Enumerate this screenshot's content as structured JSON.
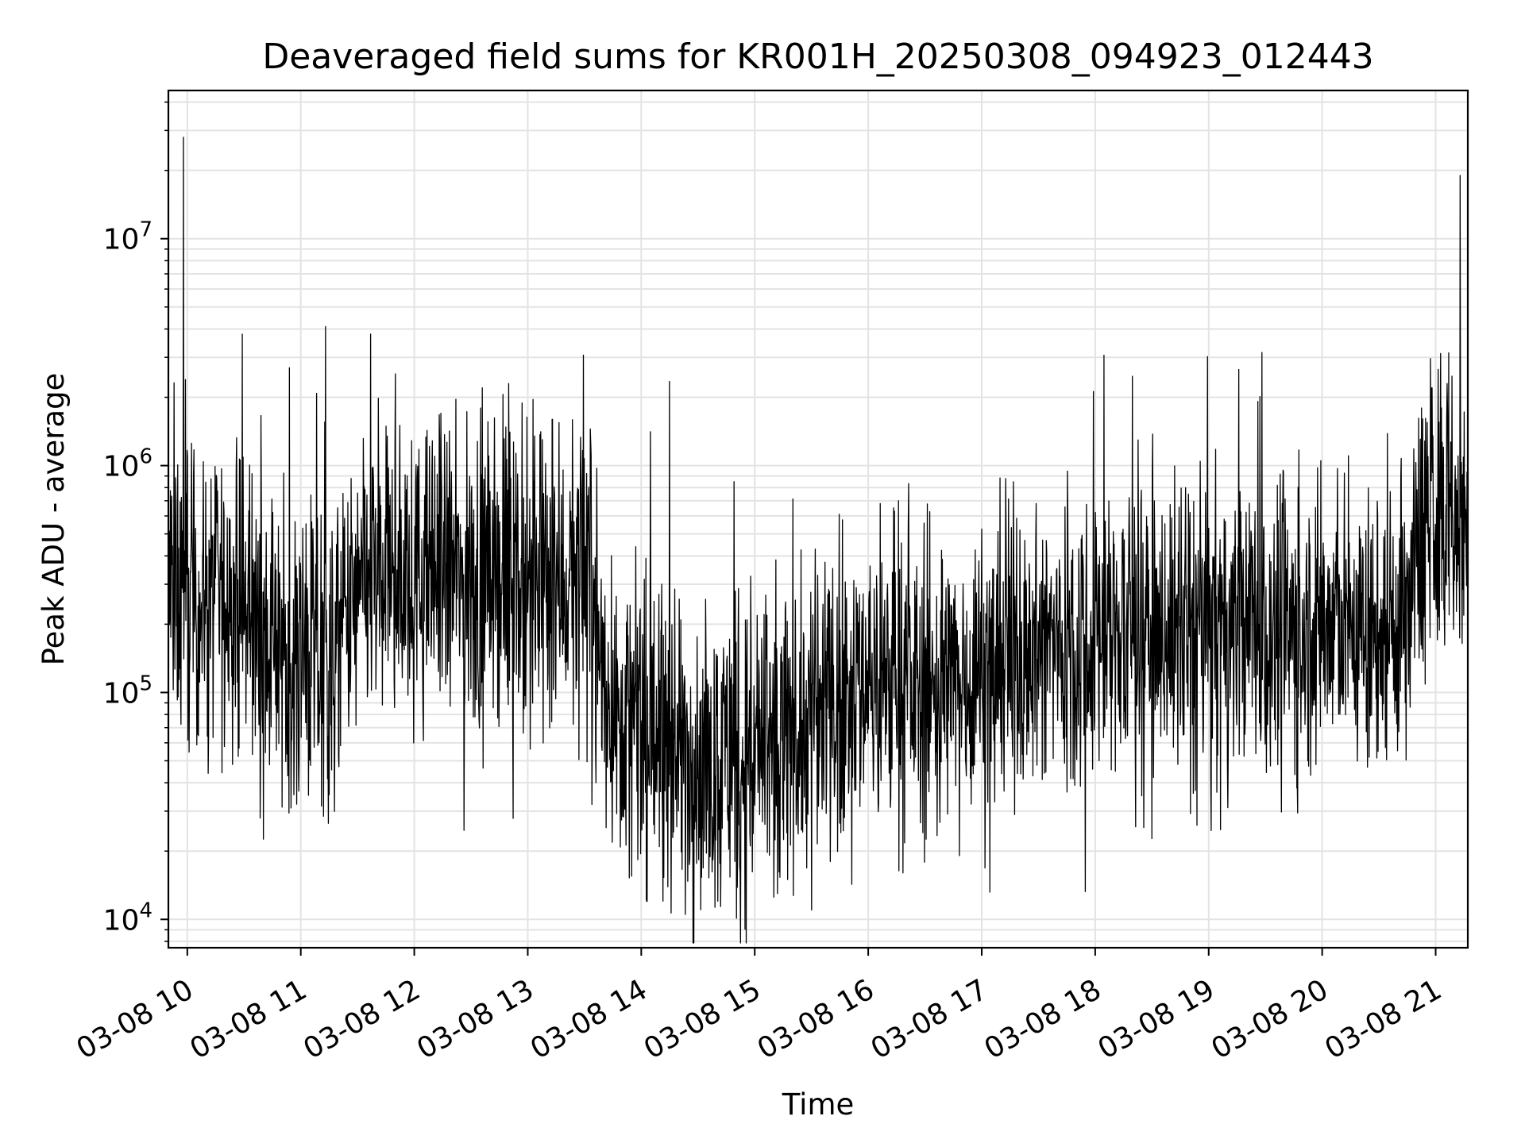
{
  "chart_data": {
    "type": "line",
    "title": "Deaveraged field sums for KR001H_20250308_094923_012443",
    "xlabel": "Time",
    "ylabel": "Peak ADU - average",
    "yscale": "log",
    "ylim": [
      7500,
      45000000
    ],
    "xlim": [
      "2025-03-08T09:50",
      "2025-03-08T21:17"
    ],
    "grid": true,
    "line_color": "#000000",
    "x_ticks": [
      {
        "t": "2025-03-08T10:00",
        "label": "03-08 10"
      },
      {
        "t": "2025-03-08T11:00",
        "label": "03-08 11"
      },
      {
        "t": "2025-03-08T12:00",
        "label": "03-08 12"
      },
      {
        "t": "2025-03-08T13:00",
        "label": "03-08 13"
      },
      {
        "t": "2025-03-08T14:00",
        "label": "03-08 14"
      },
      {
        "t": "2025-03-08T15:00",
        "label": "03-08 15"
      },
      {
        "t": "2025-03-08T16:00",
        "label": "03-08 16"
      },
      {
        "t": "2025-03-08T17:00",
        "label": "03-08 17"
      },
      {
        "t": "2025-03-08T18:00",
        "label": "03-08 18"
      },
      {
        "t": "2025-03-08T19:00",
        "label": "03-08 19"
      },
      {
        "t": "2025-03-08T20:00",
        "label": "03-08 20"
      },
      {
        "t": "2025-03-08T21:00",
        "label": "03-08 21"
      }
    ],
    "y_ticks": [
      {
        "value": 10000,
        "base": "10",
        "exp": "4"
      },
      {
        "value": 100000,
        "base": "10",
        "exp": "5"
      },
      {
        "value": 1000000,
        "base": "10",
        "exp": "6"
      },
      {
        "value": 10000000,
        "base": "10",
        "exp": "7"
      }
    ],
    "series": [
      {
        "points": [
          [
            "2025-03-08T09:50",
            300000
          ],
          [
            "2025-03-08T10:00",
            250000
          ],
          [
            "2025-03-08T10:15",
            270000
          ],
          [
            "2025-03-08T10:30",
            230000
          ],
          [
            "2025-03-08T10:45",
            160000
          ],
          [
            "2025-03-08T11:00",
            140000
          ],
          [
            "2025-03-08T11:15",
            130000
          ],
          [
            "2025-03-08T11:30",
            250000
          ],
          [
            "2025-03-08T11:45",
            350000
          ],
          [
            "2025-03-08T12:00",
            300000
          ],
          [
            "2025-03-08T12:15",
            350000
          ],
          [
            "2025-03-08T12:30",
            280000
          ],
          [
            "2025-03-08T12:45",
            340000
          ],
          [
            "2025-03-08T13:00",
            270000
          ],
          [
            "2025-03-08T13:15",
            300000
          ],
          [
            "2025-03-08T13:30",
            330000
          ],
          [
            "2025-03-08T13:45",
            85000
          ],
          [
            "2025-03-08T14:00",
            70000
          ],
          [
            "2025-03-08T14:15",
            58000
          ],
          [
            "2025-03-08T14:30",
            52000
          ],
          [
            "2025-03-08T14:45",
            55000
          ],
          [
            "2025-03-08T15:00",
            55000
          ],
          [
            "2025-03-08T15:15",
            58000
          ],
          [
            "2025-03-08T15:30",
            75000
          ],
          [
            "2025-03-08T15:45",
            100000
          ],
          [
            "2025-03-08T16:00",
            120000
          ],
          [
            "2025-03-08T16:15",
            110000
          ],
          [
            "2025-03-08T16:30",
            100000
          ],
          [
            "2025-03-08T16:45",
            110000
          ],
          [
            "2025-03-08T17:00",
            130000
          ],
          [
            "2025-03-08T17:15",
            150000
          ],
          [
            "2025-03-08T17:30",
            160000
          ],
          [
            "2025-03-08T17:45",
            170000
          ],
          [
            "2025-03-08T18:00",
            180000
          ],
          [
            "2025-03-08T18:15",
            190000
          ],
          [
            "2025-03-08T18:30",
            190000
          ],
          [
            "2025-03-08T18:45",
            190000
          ],
          [
            "2025-03-08T19:00",
            190000
          ],
          [
            "2025-03-08T19:15",
            190000
          ],
          [
            "2025-03-08T19:30",
            190000
          ],
          [
            "2025-03-08T19:45",
            190000
          ],
          [
            "2025-03-08T20:00",
            200000
          ],
          [
            "2025-03-08T20:15",
            190000
          ],
          [
            "2025-03-08T20:30",
            180000
          ],
          [
            "2025-03-08T20:45",
            230000
          ],
          [
            "2025-03-08T20:55",
            600000
          ],
          [
            "2025-03-08T21:05",
            550000
          ],
          [
            "2025-03-08T21:17",
            600000
          ]
        ],
        "noise_decades": 0.32,
        "spikes": [
          [
            "2025-03-08T09:58",
            28000000
          ],
          [
            "2025-03-08T10:29",
            3800000
          ],
          [
            "2025-03-08T10:54",
            2700000
          ],
          [
            "2025-03-08T11:13",
            4100000
          ],
          [
            "2025-03-08T11:37",
            3800000
          ],
          [
            "2025-03-08T12:14",
            1700000
          ],
          [
            "2025-03-08T13:13",
            1600000
          ],
          [
            "2025-03-08T13:33",
            1450000
          ],
          [
            "2025-03-08T14:15",
            2350000
          ],
          [
            "2025-03-08T14:49",
            850000
          ],
          [
            "2025-03-08T16:16",
            700000
          ],
          [
            "2025-03-08T20:58",
            2200000
          ],
          [
            "2025-03-08T21:06",
            2300000
          ],
          [
            "2025-03-08T21:13",
            19000000
          ],
          [
            "2025-03-08T14:03",
            12000
          ],
          [
            "2025-03-08T15:30",
            11000
          ],
          [
            "2025-03-08T15:12",
            13000
          ],
          [
            "2025-03-08T13:55",
            15500
          ],
          [
            "2025-03-08T15:40",
            18000
          ]
        ]
      }
    ]
  }
}
